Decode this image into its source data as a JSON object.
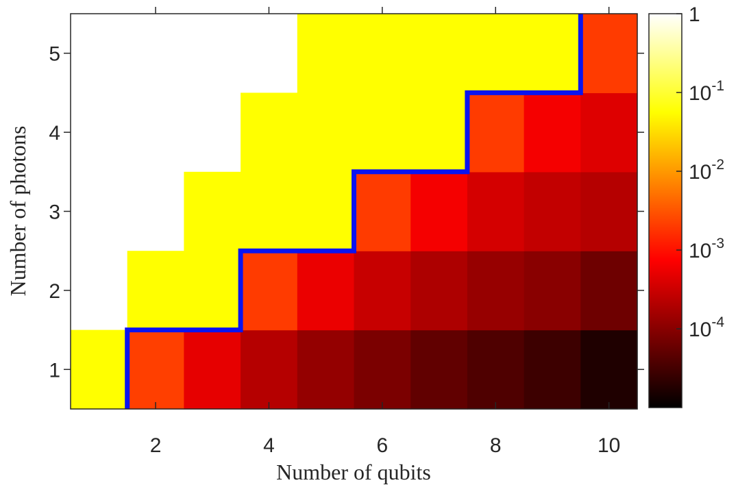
{
  "chart_data": {
    "type": "heatmap",
    "title": "",
    "xlabel": "Number of qubits",
    "ylabel": "Number of photons",
    "x": [
      1,
      2,
      3,
      4,
      5,
      6,
      7,
      8,
      9,
      10
    ],
    "y": [
      1,
      2,
      3,
      4,
      5
    ],
    "x_ticks": [
      2,
      4,
      6,
      8,
      10
    ],
    "y_ticks": [
      1,
      2,
      3,
      4,
      5
    ],
    "x_tick_labels": [
      "2",
      "4",
      "6",
      "8",
      "10"
    ],
    "y_tick_labels": [
      "1",
      "2",
      "3",
      "4",
      "5"
    ],
    "xlim": [
      0.5,
      10.5
    ],
    "ylim": [
      0.5,
      5.5
    ],
    "color_scale": "log",
    "colormap": "hot",
    "clim": [
      1e-05,
      1
    ],
    "colorbar_ticks": [
      {
        "value": 1,
        "base": "1",
        "exp": ""
      },
      {
        "value": 0.1,
        "base": "10",
        "exp": "-1"
      },
      {
        "value": 0.01,
        "base": "10",
        "exp": "-2"
      },
      {
        "value": 0.001,
        "base": "10",
        "exp": "-3"
      },
      {
        "value": 0.0001,
        "base": "10",
        "exp": "-4"
      }
    ],
    "values": [
      [
        1.0,
        0.013,
        0.0018,
        0.0006,
        0.00028,
        0.00016,
        9e-05,
        6e-05,
        4e-05,
        2e-05
      ],
      [
        null,
        1.0,
        1.0,
        0.012,
        0.002,
        0.0009,
        0.0005,
        0.0003,
        0.00022,
        0.00012
      ],
      [
        null,
        null,
        1.0,
        1.0,
        1.0,
        0.012,
        0.0025,
        0.0012,
        0.0008,
        0.0006
      ],
      [
        null,
        null,
        null,
        1.0,
        1.0,
        1.0,
        1.0,
        0.012,
        0.0025,
        0.0015
      ],
      [
        null,
        null,
        null,
        null,
        1.0,
        1.0,
        1.0,
        1.0,
        1.0,
        0.012
      ]
    ],
    "boundary_line": {
      "color": "#0a14f0",
      "points": [
        [
          1.5,
          0.5
        ],
        [
          1.5,
          1.5
        ],
        [
          3.5,
          1.5
        ],
        [
          3.5,
          2.5
        ],
        [
          5.5,
          2.5
        ],
        [
          5.5,
          3.5
        ],
        [
          7.5,
          3.5
        ],
        [
          7.5,
          4.5
        ],
        [
          9.5,
          4.5
        ],
        [
          9.5,
          5.5
        ]
      ]
    },
    "grid": false,
    "legend": "none"
  }
}
